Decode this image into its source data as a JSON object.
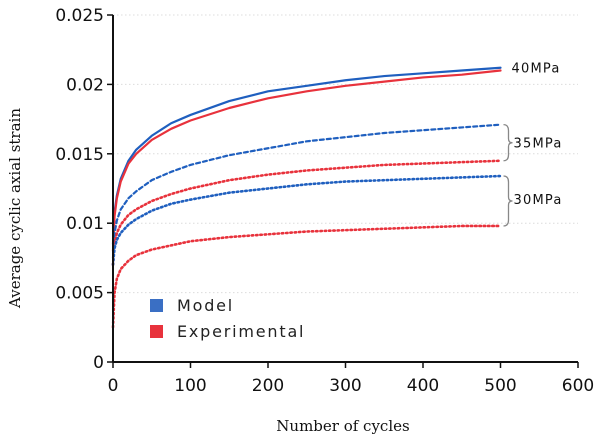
{
  "chart_data": {
    "type": "line",
    "xlabel": "Number of cycles",
    "ylabel": "Average cyclic axial strain",
    "xlim": [
      0,
      600
    ],
    "ylim": [
      0,
      0.025
    ],
    "xticks": [
      0,
      100,
      200,
      300,
      400,
      500,
      600
    ],
    "yticks": [
      0,
      0.005,
      0.01,
      0.015,
      0.02,
      0.025
    ],
    "xtick_labels": [
      "0",
      "100",
      "200",
      "300",
      "400",
      "500",
      "600"
    ],
    "ytick_labels": [
      "0",
      "0.005",
      "0.01",
      "0.015",
      "0.02",
      "0.025"
    ],
    "grid": "horizontal",
    "legend": {
      "position": "bottom-left",
      "entries": [
        {
          "label": "Model",
          "color": "#3a6fc4"
        },
        {
          "label": "Experimental",
          "color": "#e8323c"
        }
      ]
    },
    "annotations": [
      {
        "text": "40MPa",
        "y": 0.0212
      },
      {
        "text": "35MPa",
        "y": 0.0158
      },
      {
        "text": "30MPa",
        "y": 0.0115
      }
    ],
    "series": [
      {
        "group": "40MPa",
        "kind": "Model",
        "color": "#1f5fbf",
        "style": "solid",
        "x": [
          0,
          2,
          5,
          10,
          20,
          30,
          50,
          75,
          100,
          150,
          200,
          250,
          300,
          350,
          400,
          450,
          500
        ],
        "y": [
          0.0085,
          0.0108,
          0.012,
          0.0132,
          0.0145,
          0.0153,
          0.0163,
          0.0172,
          0.0178,
          0.0188,
          0.0195,
          0.0199,
          0.0203,
          0.0206,
          0.0208,
          0.021,
          0.0212
        ]
      },
      {
        "group": "40MPa",
        "kind": "Experimental",
        "color": "#e8323c",
        "style": "solid",
        "x": [
          0,
          2,
          5,
          10,
          20,
          30,
          50,
          75,
          100,
          150,
          200,
          250,
          300,
          350,
          400,
          450,
          500
        ],
        "y": [
          0.008,
          0.0105,
          0.0118,
          0.013,
          0.0143,
          0.015,
          0.016,
          0.0168,
          0.0174,
          0.0183,
          0.019,
          0.0195,
          0.0199,
          0.0202,
          0.0205,
          0.0207,
          0.021
        ]
      },
      {
        "group": "35MPa",
        "kind": "Model",
        "color": "#1f5fbf",
        "style": "dashed",
        "x": [
          0,
          2,
          5,
          10,
          20,
          30,
          50,
          75,
          100,
          150,
          200,
          250,
          300,
          350,
          400,
          450,
          500
        ],
        "y": [
          0.0075,
          0.0093,
          0.0102,
          0.011,
          0.0118,
          0.0123,
          0.0131,
          0.0137,
          0.0142,
          0.0149,
          0.0154,
          0.0159,
          0.0162,
          0.0165,
          0.0167,
          0.0169,
          0.0171
        ]
      },
      {
        "group": "35MPa",
        "kind": "Experimental",
        "color": "#e8323c",
        "style": "dotted",
        "x": [
          0,
          2,
          5,
          10,
          20,
          30,
          50,
          75,
          100,
          150,
          200,
          250,
          300,
          350,
          400,
          450,
          500
        ],
        "y": [
          0.007,
          0.0085,
          0.0093,
          0.0099,
          0.0106,
          0.011,
          0.0116,
          0.0121,
          0.0125,
          0.0131,
          0.0135,
          0.0138,
          0.014,
          0.0142,
          0.0143,
          0.0144,
          0.0145
        ]
      },
      {
        "group": "30MPa",
        "kind": "Model",
        "color": "#1f5fbf",
        "style": "dotted",
        "x": [
          0,
          2,
          5,
          10,
          20,
          30,
          50,
          75,
          100,
          150,
          200,
          250,
          300,
          350,
          400,
          450,
          500
        ],
        "y": [
          0.007,
          0.0082,
          0.0088,
          0.0093,
          0.0099,
          0.0103,
          0.0109,
          0.0114,
          0.0117,
          0.0122,
          0.0125,
          0.0128,
          0.013,
          0.0131,
          0.0132,
          0.0133,
          0.0134
        ]
      },
      {
        "group": "30MPa",
        "kind": "Experimental",
        "color": "#e8323c",
        "style": "dotted",
        "x": [
          0,
          2,
          5,
          10,
          20,
          30,
          50,
          75,
          100,
          150,
          200,
          250,
          300,
          350,
          400,
          450,
          500
        ],
        "y": [
          0.0025,
          0.005,
          0.006,
          0.0067,
          0.0073,
          0.0077,
          0.0081,
          0.0084,
          0.0087,
          0.009,
          0.0092,
          0.0094,
          0.0095,
          0.0096,
          0.0097,
          0.0098,
          0.0098
        ]
      }
    ]
  }
}
